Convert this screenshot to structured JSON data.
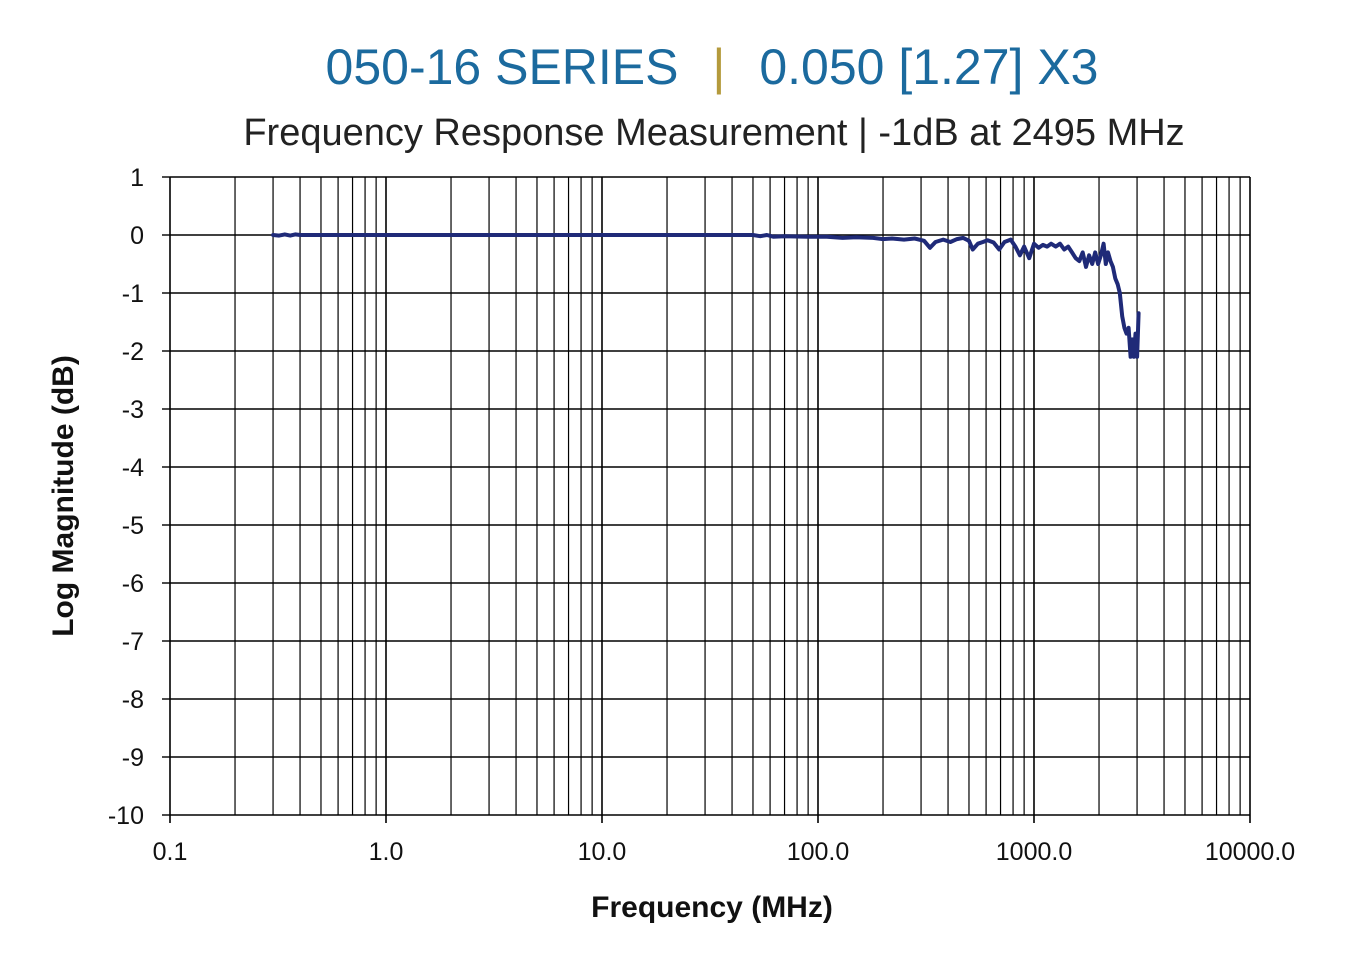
{
  "title": {
    "part1": "050-16 SERIES",
    "separator": "|",
    "part2": "0.050 [1.27] X3"
  },
  "subtitle": "Frequency Response Measurement | -1dB at 2495 MHz",
  "colors": {
    "title": "#1b6a9e",
    "separator": "#b49a3c",
    "series": "#1f2a78",
    "grid": "#000000"
  },
  "chart_data": {
    "type": "line",
    "title": "050-16 SERIES | 0.050 [1.27] X3",
    "subtitle": "Frequency Response Measurement | -1dB at 2495 MHz",
    "xlabel": "Frequency (MHz)",
    "ylabel": "Log Magnitude (dB)",
    "x_scale": "log",
    "xlim": [
      0.1,
      10000
    ],
    "ylim": [
      -10,
      1
    ],
    "x_ticks": [
      0.1,
      1,
      10,
      100,
      1000,
      10000
    ],
    "x_tick_labels": [
      "0.1",
      "1.0",
      "10.0",
      "100.0",
      "1000.0",
      "10000.0"
    ],
    "y_ticks": [
      1,
      0,
      -1,
      -2,
      -3,
      -4,
      -5,
      -6,
      -7,
      -8,
      -9,
      -10
    ],
    "y_tick_labels": [
      "1",
      "0",
      "-1",
      "-2",
      "-3",
      "-4",
      "-5",
      "-6",
      "-7",
      "-8",
      "-9",
      "-10"
    ],
    "grid": true,
    "legend": "none",
    "series": [
      {
        "points": [
          [
            0.3,
            0.0
          ],
          [
            0.32,
            -0.01
          ],
          [
            0.34,
            0.01
          ],
          [
            0.36,
            -0.01
          ],
          [
            0.38,
            0.01
          ],
          [
            0.4,
            0.0
          ],
          [
            0.5,
            0.0
          ],
          [
            1.0,
            0.0
          ],
          [
            2.0,
            0.0
          ],
          [
            5.0,
            0.0
          ],
          [
            10.0,
            0.0
          ],
          [
            20.0,
            0.0
          ],
          [
            40.0,
            0.0
          ],
          [
            50.0,
            0.0
          ],
          [
            54.0,
            -0.02
          ],
          [
            58.0,
            0.0
          ],
          [
            62.0,
            -0.03
          ],
          [
            70.0,
            -0.02
          ],
          [
            90.0,
            -0.03
          ],
          [
            110.0,
            -0.03
          ],
          [
            130.0,
            -0.05
          ],
          [
            150.0,
            -0.04
          ],
          [
            180.0,
            -0.05
          ],
          [
            200.0,
            -0.07
          ],
          [
            220.0,
            -0.06
          ],
          [
            250.0,
            -0.08
          ],
          [
            280.0,
            -0.06
          ],
          [
            310.0,
            -0.1
          ],
          [
            330.0,
            -0.22
          ],
          [
            350.0,
            -0.12
          ],
          [
            380.0,
            -0.08
          ],
          [
            410.0,
            -0.12
          ],
          [
            440.0,
            -0.07
          ],
          [
            470.0,
            -0.05
          ],
          [
            500.0,
            -0.1
          ],
          [
            520.0,
            -0.25
          ],
          [
            550.0,
            -0.15
          ],
          [
            580.0,
            -0.12
          ],
          [
            610.0,
            -0.09
          ],
          [
            650.0,
            -0.13
          ],
          [
            690.0,
            -0.25
          ],
          [
            730.0,
            -0.12
          ],
          [
            780.0,
            -0.08
          ],
          [
            820.0,
            -0.2
          ],
          [
            860.0,
            -0.35
          ],
          [
            900.0,
            -0.2
          ],
          [
            950.0,
            -0.4
          ],
          [
            1000.0,
            -0.15
          ],
          [
            1050.0,
            -0.22
          ],
          [
            1100.0,
            -0.17
          ],
          [
            1150.0,
            -0.2
          ],
          [
            1200.0,
            -0.15
          ],
          [
            1260.0,
            -0.2
          ],
          [
            1320.0,
            -0.15
          ],
          [
            1380.0,
            -0.25
          ],
          [
            1440.0,
            -0.2
          ],
          [
            1500.0,
            -0.3
          ],
          [
            1560.0,
            -0.4
          ],
          [
            1620.0,
            -0.45
          ],
          [
            1680.0,
            -0.3
          ],
          [
            1740.0,
            -0.55
          ],
          [
            1800.0,
            -0.35
          ],
          [
            1860.0,
            -0.5
          ],
          [
            1920.0,
            -0.3
          ],
          [
            1980.0,
            -0.5
          ],
          [
            2040.0,
            -0.35
          ],
          [
            2100.0,
            -0.15
          ],
          [
            2150.0,
            -0.5
          ],
          [
            2200.0,
            -0.3
          ],
          [
            2260.0,
            -0.45
          ],
          [
            2320.0,
            -0.55
          ],
          [
            2380.0,
            -0.75
          ],
          [
            2440.0,
            -0.85
          ],
          [
            2495.0,
            -1.0
          ],
          [
            2560.0,
            -1.4
          ],
          [
            2620.0,
            -1.6
          ],
          [
            2680.0,
            -1.7
          ],
          [
            2740.0,
            -1.6
          ],
          [
            2800.0,
            -2.1
          ],
          [
            2850.0,
            -1.8
          ],
          [
            2900.0,
            -2.1
          ],
          [
            2950.0,
            -1.7
          ],
          [
            3000.0,
            -2.1
          ],
          [
            3050.0,
            -1.35
          ]
        ]
      }
    ]
  }
}
